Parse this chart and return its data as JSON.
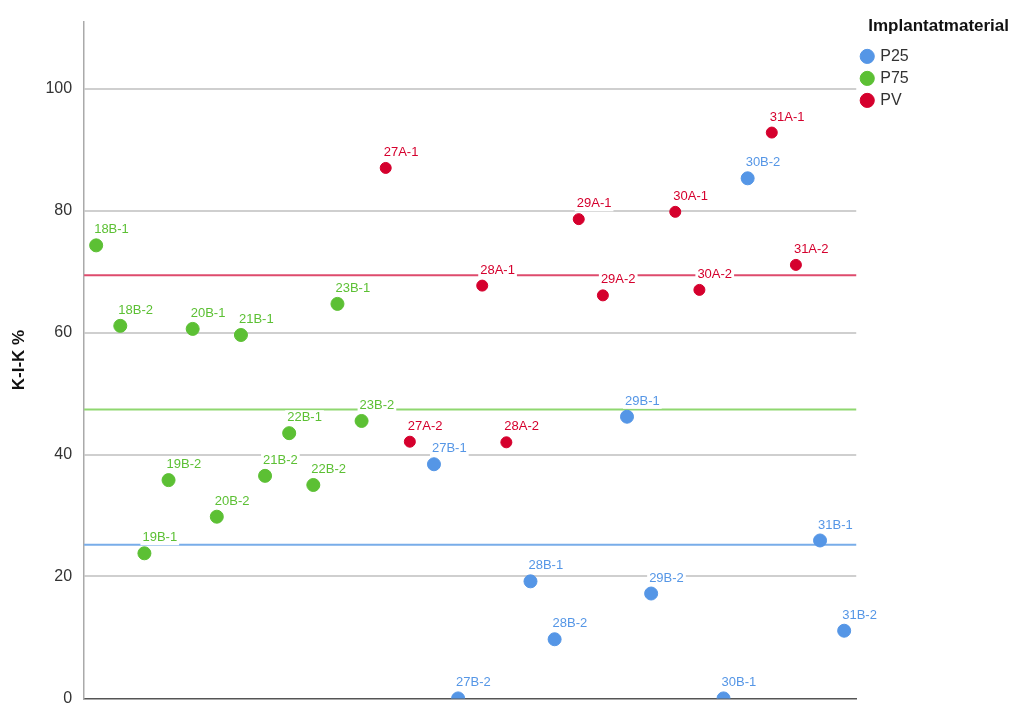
{
  "chart_data": {
    "type": "scatter",
    "ylabel": "K-I-K %",
    "legend_title": "Implantatmaterial",
    "categories": [
      null,
      null,
      null,
      null,
      null,
      null,
      null,
      null,
      null,
      null,
      null,
      null,
      null,
      null,
      null,
      null,
      null,
      null,
      null,
      null,
      null,
      null,
      null,
      null,
      null,
      null,
      null,
      null,
      null,
      null,
      null,
      null
    ],
    "series": [
      {
        "name": "P25",
        "color": "#5596e6",
        "values": [
          null,
          null,
          null,
          null,
          null,
          null,
          null,
          null,
          null,
          null,
          null,
          null,
          null,
          null,
          38.4,
          0,
          null,
          null,
          19.2,
          9.7,
          null,
          null,
          46.2,
          17.2,
          null,
          null,
          0,
          85.3,
          null,
          null,
          25.9,
          11.1
        ],
        "value_labels": [
          null,
          null,
          null,
          null,
          null,
          null,
          null,
          null,
          null,
          null,
          null,
          null,
          null,
          null,
          "27B-1",
          "27B-2",
          null,
          null,
          "28B-1",
          "28B-2",
          null,
          null,
          "29B-1",
          "29B-2",
          null,
          null,
          "30B-1",
          "30B-2",
          null,
          null,
          "31B-1",
          "31B-2"
        ]
      },
      {
        "name": "P75",
        "color": "#5cc034",
        "values": [
          74.3,
          61.1,
          23.8,
          35.8,
          60.6,
          29.8,
          59.6,
          36.5,
          43.5,
          35.0,
          64.7,
          45.5,
          null,
          null,
          null,
          null,
          null,
          null,
          null,
          null,
          null,
          null,
          null,
          null,
          null,
          null,
          null,
          null,
          null,
          null,
          null,
          null
        ],
        "value_labels": [
          "18B-1",
          "18B-2",
          "19B-1",
          "19B-2",
          "20B-1",
          "20B-2",
          "21B-1",
          "21B-2",
          "22B-1",
          "22B-2",
          "23B-1",
          "23B-2",
          null,
          null,
          null,
          null,
          null,
          null,
          null,
          null,
          null,
          null,
          null,
          null,
          null,
          null,
          null,
          null,
          null,
          null,
          null,
          null
        ]
      },
      {
        "name": "PV",
        "color": "#d5002d",
        "values": [
          null,
          null,
          null,
          null,
          null,
          null,
          null,
          null,
          null,
          null,
          null,
          null,
          87.0,
          42.1,
          null,
          null,
          67.7,
          42.0,
          null,
          null,
          78.6,
          66.1,
          null,
          null,
          79.8,
          67.0,
          null,
          null,
          92.8,
          71.1,
          null,
          null
        ],
        "value_labels": [
          null,
          null,
          null,
          null,
          null,
          null,
          null,
          null,
          null,
          null,
          null,
          null,
          "27A-1",
          "27A-2",
          null,
          null,
          "28A-1",
          "28A-2",
          null,
          null,
          "29A-1",
          "29A-2",
          null,
          null,
          "30A-1",
          "30A-2",
          null,
          null,
          "31A-1",
          "31A-2",
          null,
          null
        ]
      }
    ],
    "ylim": [
      0,
      111
    ],
    "yticks": [
      0,
      20,
      40,
      60,
      80,
      100
    ],
    "grid": "y",
    "legend": "top right",
    "marker": "circle",
    "tick_labels": "y",
    "ref_lines": [
      {
        "axis": "y",
        "value": 25.2,
        "color": "#78ade9"
      },
      {
        "axis": "y",
        "value": 47.4,
        "color": "#8fd770"
      },
      {
        "axis": "y",
        "value": 69.4,
        "color": "#de4b6d"
      }
    ]
  }
}
